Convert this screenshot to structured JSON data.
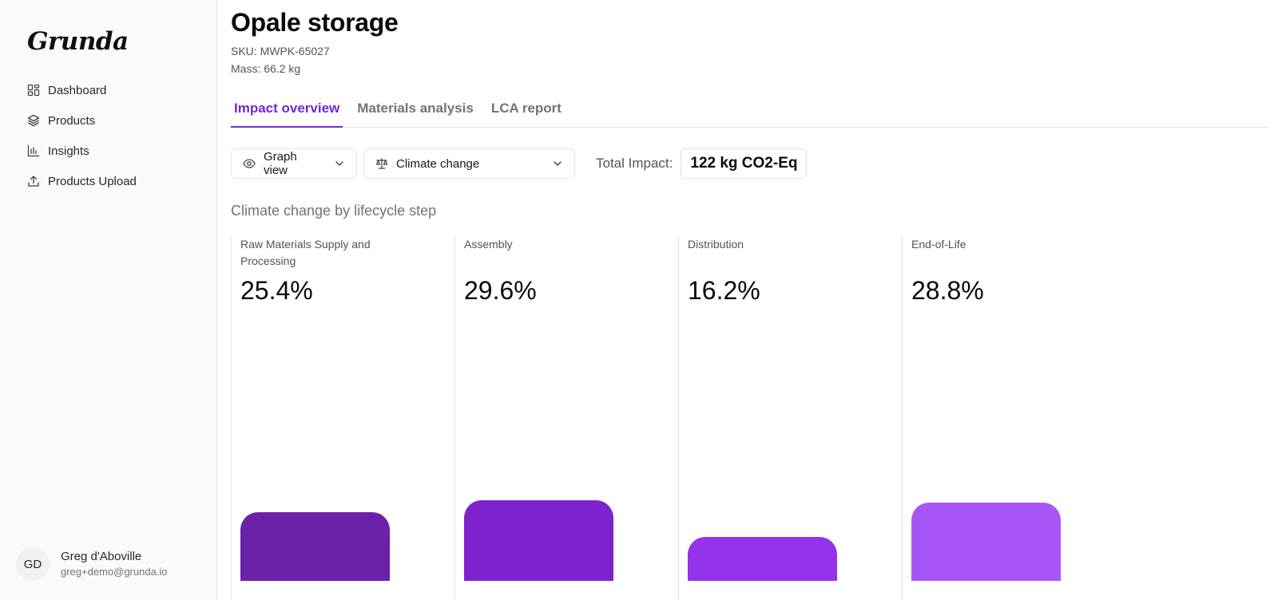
{
  "sidebar": {
    "logo": "Grunda",
    "items": [
      {
        "label": "Dashboard",
        "icon": "dashboard-icon"
      },
      {
        "label": "Products",
        "icon": "layers-icon"
      },
      {
        "label": "Insights",
        "icon": "bar-chart-icon"
      },
      {
        "label": "Products Upload",
        "icon": "upload-icon"
      }
    ],
    "user": {
      "initials": "GD",
      "name": "Greg d'Aboville",
      "email": "greg+demo@grunda.io"
    }
  },
  "product": {
    "title": "Opale storage",
    "sku": "SKU: MWPK-65027",
    "mass": "Mass: 66.2 kg"
  },
  "tabs": [
    {
      "label": "Impact overview",
      "active": true
    },
    {
      "label": "Materials analysis",
      "active": false
    },
    {
      "label": "LCA report",
      "active": false
    }
  ],
  "controls": {
    "view_select": "Graph view",
    "metric_select": "Climate change",
    "total_label": "Total Impact:",
    "total_value": "122 kg CO2-Eq"
  },
  "section_title": "Climate change by lifecycle step",
  "chart_data": {
    "type": "bar",
    "categories": [
      "Raw Materials Supply and Processing",
      "Assembly",
      "Distribution",
      "End-of-Life"
    ],
    "values": [
      25.4,
      29.6,
      16.2,
      28.8
    ],
    "value_labels": [
      "25.4%",
      "29.6%",
      "16.2%",
      "28.8%"
    ],
    "colors": [
      "#6b21a8",
      "#7e22ce",
      "#9333ea",
      "#a855f7"
    ],
    "ylim": [
      0,
      100
    ],
    "grid": false
  }
}
